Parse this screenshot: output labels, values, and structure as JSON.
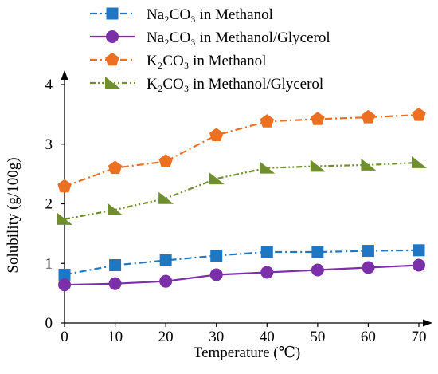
{
  "chart_data": {
    "type": "line",
    "xlabel": "Temperature (℃)",
    "ylabel": "Solubility (g/100g)",
    "x": [
      0,
      10,
      20,
      30,
      40,
      50,
      60,
      70
    ],
    "x_ticks": [
      "0",
      "10",
      "20",
      "30",
      "40",
      "50",
      "60",
      "70"
    ],
    "y_ticks": [
      "0",
      "1",
      "2",
      "3",
      "4"
    ],
    "xlim": [
      0,
      70
    ],
    "ylim": [
      0,
      4
    ],
    "grid": false,
    "legend_position": "top",
    "series": [
      {
        "name": "Na₂CO₃ in Methanol",
        "color": "#1f77c4",
        "marker": "square",
        "dash": "dash-dot",
        "values": [
          0.81,
          0.97,
          1.05,
          1.13,
          1.19,
          1.19,
          1.21,
          1.22
        ]
      },
      {
        "name": "Na₂CO₃ in Methanol/Glycerol",
        "color": "#7b2fa8",
        "marker": "circle",
        "dash": "solid",
        "values": [
          0.64,
          0.66,
          0.7,
          0.81,
          0.85,
          0.89,
          0.93,
          0.97
        ]
      },
      {
        "name": "K₂CO₃ in Methanol",
        "color": "#ec7022",
        "marker": "pentagon",
        "dash": "dash-dot",
        "values": [
          2.29,
          2.6,
          2.71,
          3.15,
          3.38,
          3.42,
          3.45,
          3.49
        ]
      },
      {
        "name": "K₂CO₃ in Methanol/Glycerol",
        "color": "#6f8f2e",
        "marker": "triangle",
        "dash": "dash-dot-dot",
        "values": [
          1.74,
          1.9,
          2.09,
          2.42,
          2.6,
          2.63,
          2.65,
          2.69
        ]
      }
    ]
  }
}
